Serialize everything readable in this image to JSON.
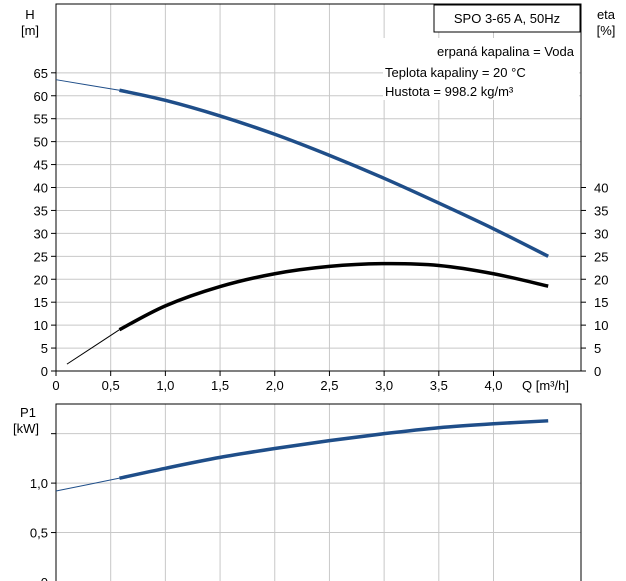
{
  "chart_data": [
    {
      "type": "line",
      "title": "SPO 3-65 A, 50Hz",
      "annotations": [
        "erpaná kapalina = Voda",
        "Teplota kapaliny = 20 °C",
        "Hustota = 998.2 kg/m³"
      ],
      "xlabel": "Q [m³/h]",
      "xlim": [
        0,
        4.8
      ],
      "x_ticks": [
        "0",
        "0,5",
        "1,0",
        "1,5",
        "2,0",
        "2,5",
        "3,0",
        "3,5",
        "4,0"
      ],
      "y_left": {
        "label_top": "H",
        "label_bottom": "[m]",
        "ylim": [
          0,
          80
        ],
        "ticks": [
          "0",
          "5",
          "10",
          "15",
          "20",
          "25",
          "30",
          "35",
          "40",
          "45",
          "50",
          "55",
          "60",
          "65"
        ]
      },
      "y_right": {
        "label_top": "eta",
        "label_bottom": "[%]",
        "ylim": [
          0,
          80
        ],
        "ticks": [
          "0",
          "5",
          "10",
          "15",
          "20",
          "25",
          "30",
          "35",
          "40"
        ]
      },
      "grid": true,
      "series": [
        {
          "color": "#1f4e89",
          "axis": "left",
          "x": [
            0.0,
            0.58,
            1.0,
            1.5,
            2.0,
            2.5,
            3.0,
            3.5,
            4.0,
            4.5
          ],
          "y": [
            63.5,
            61.2,
            59.0,
            55.6,
            51.6,
            47.0,
            42.0,
            36.6,
            31.0,
            25.0
          ],
          "thin_until": 0.58
        },
        {
          "color": "#000000",
          "axis": "right",
          "x": [
            0.1,
            0.58,
            1.0,
            1.5,
            2.0,
            2.5,
            3.0,
            3.5,
            4.0,
            4.5
          ],
          "y": [
            1.5,
            9.0,
            14.2,
            18.4,
            21.2,
            22.8,
            23.4,
            23.0,
            21.2,
            18.5
          ],
          "thin_until": 0.58
        }
      ]
    },
    {
      "type": "line",
      "xlim": [
        0,
        4.8
      ],
      "y_left": {
        "label_top": "P1",
        "label_bottom": "[kW]",
        "ylim": [
          0,
          1.8
        ],
        "ticks": [
          "0",
          "0,5",
          "1,0"
        ]
      },
      "grid": true,
      "series": [
        {
          "color": "#1f4e89",
          "x": [
            0.0,
            0.58,
            1.0,
            1.5,
            2.0,
            2.5,
            3.0,
            3.5,
            4.0,
            4.5
          ],
          "y": [
            0.92,
            1.05,
            1.15,
            1.26,
            1.35,
            1.43,
            1.5,
            1.56,
            1.6,
            1.63
          ],
          "thin_until": 0.58
        }
      ]
    }
  ]
}
